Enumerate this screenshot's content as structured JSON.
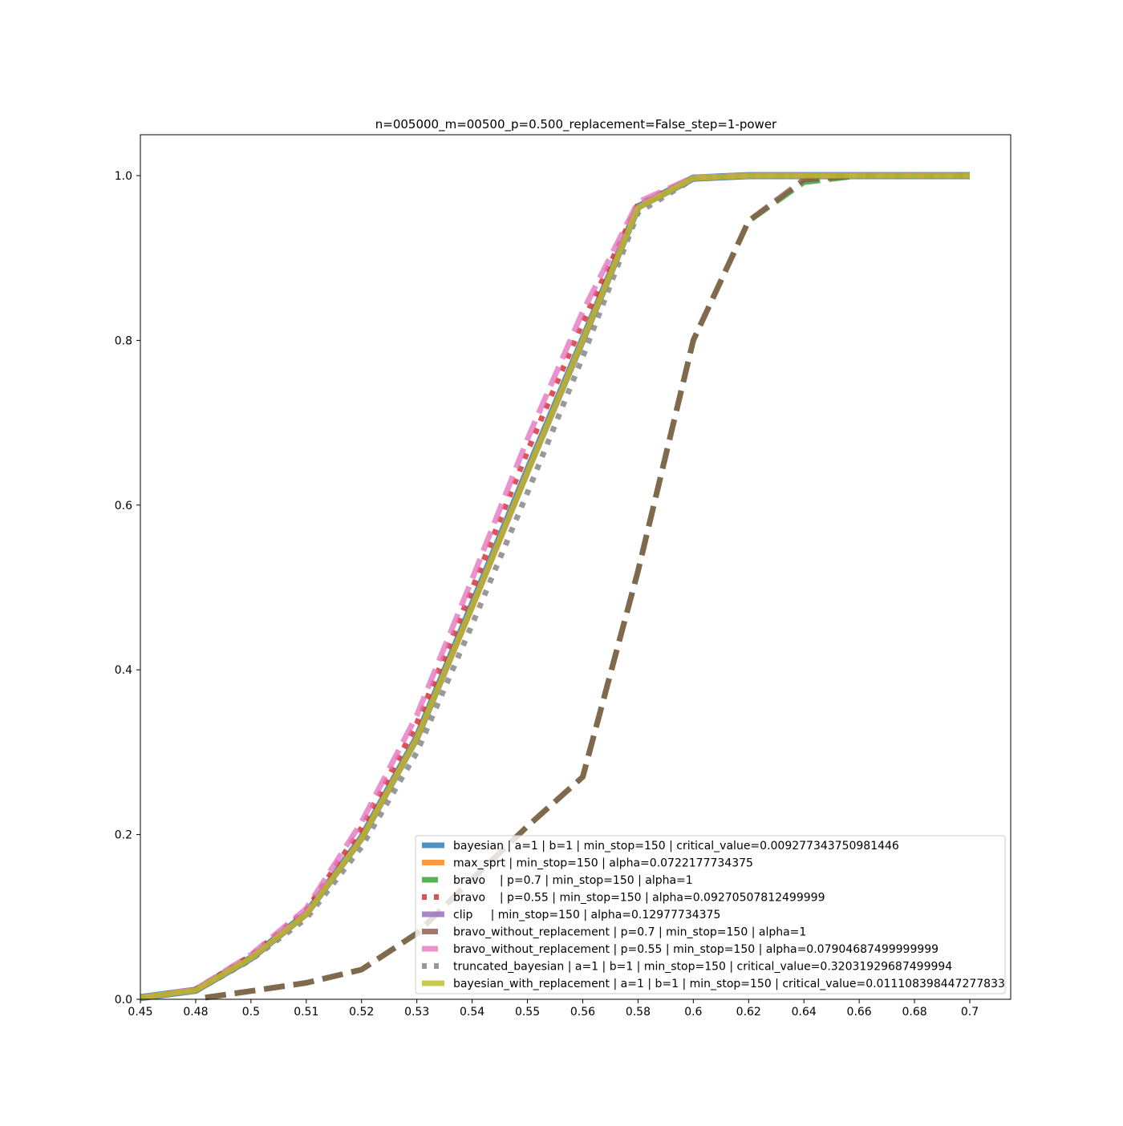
{
  "chart_data": {
    "type": "line",
    "title": "n=005000_m=00500_p=0.500_replacement=False_step=1-power",
    "xlabel": "",
    "ylabel": "",
    "x_tick_labels": [
      "0.45",
      "0.48",
      "0.5",
      "0.51",
      "0.52",
      "0.53",
      "0.54",
      "0.55",
      "0.56",
      "0.58",
      "0.6",
      "0.62",
      "0.64",
      "0.66",
      "0.68",
      "0.7"
    ],
    "y_ticks": [
      "0.0",
      "0.2",
      "0.4",
      "0.6",
      "0.8",
      "1.0"
    ],
    "ylim": [
      0,
      1.05
    ],
    "grid": false,
    "legend_position": "lower-right",
    "series": [
      {
        "name": "bayesian | a=1 | b=1 | min_stop=150 | critical_value=0.009277343750981446",
        "color": "#1f77b4",
        "dash": "solid",
        "values": [
          0.002,
          0.011,
          0.05,
          0.104,
          0.196,
          0.318,
          0.479,
          0.642,
          0.801,
          0.962,
          0.997,
          1.0,
          1.0,
          1.0,
          1.0,
          1.0
        ]
      },
      {
        "name": "max_sprt | min_stop=150 | alpha=0.0722177734375",
        "color": "#ff7f0e",
        "dash": "solid",
        "values": [
          0.002,
          0.011,
          0.05,
          0.103,
          0.195,
          0.317,
          0.476,
          0.64,
          0.8,
          0.962,
          0.997,
          1.0,
          1.0,
          1.0,
          1.0,
          1.0
        ]
      },
      {
        "name": "bravo    | p=0.7 | min_stop=150 | alpha=1",
        "color": "#2ca02c",
        "dash": "dashed",
        "values": [
          null,
          0.002,
          0.01,
          0.02,
          0.036,
          0.08,
          0.146,
          0.21,
          0.27,
          0.52,
          0.8,
          0.945,
          0.992,
          1.0,
          1.0,
          1.0
        ]
      },
      {
        "name": "bravo    | p=0.55 | min_stop=150 | alpha=0.09270507812499999",
        "color": "#d62728",
        "dash": "dotted",
        "values": [
          0.002,
          0.012,
          0.053,
          0.108,
          0.208,
          0.335,
          0.498,
          0.665,
          0.822,
          0.965,
          0.997,
          1.0,
          1.0,
          1.0,
          1.0,
          1.0
        ]
      },
      {
        "name": "clip     | min_stop=150 | alpha=0.12977734375",
        "color": "#9467bd",
        "dash": "solid",
        "values": [
          0.002,
          0.011,
          0.05,
          0.103,
          0.196,
          0.318,
          0.477,
          0.641,
          0.8,
          0.962,
          0.997,
          1.0,
          1.0,
          1.0,
          1.0,
          1.0
        ]
      },
      {
        "name": "bravo_without_replacement | p=0.7 | min_stop=150 | alpha=1",
        "color": "#8c564b",
        "dash": "dashed",
        "values": [
          null,
          0.002,
          0.01,
          0.02,
          0.036,
          0.08,
          0.146,
          0.21,
          0.27,
          0.52,
          0.8,
          0.945,
          0.995,
          1.0,
          1.0,
          1.0
        ]
      },
      {
        "name": "bravo_without_replacement | p=0.55 | min_stop=150 | alpha=0.07904687499999999",
        "color": "#e377c2",
        "dash": "dashed",
        "values": [
          0.002,
          0.012,
          0.054,
          0.11,
          0.215,
          0.345,
          0.51,
          0.68,
          0.835,
          0.968,
          0.998,
          1.0,
          1.0,
          1.0,
          1.0,
          1.0
        ]
      },
      {
        "name": "truncated_bayesian | a=1 | b=1 | min_stop=150 | critical_value=0.32031929687499994",
        "color": "#7f7f7f",
        "dash": "dotted",
        "values": [
          0.002,
          0.01,
          0.048,
          0.098,
          0.185,
          0.3,
          0.455,
          0.615,
          0.78,
          0.955,
          0.996,
          1.0,
          1.0,
          1.0,
          1.0,
          1.0
        ]
      },
      {
        "name": "bayesian_with_replacement | a=1 | b=1 | min_stop=150 | critical_value=0.011108398447277833",
        "color": "#bcbd22",
        "dash": "solid",
        "values": [
          0.002,
          0.011,
          0.05,
          0.103,
          0.195,
          0.317,
          0.477,
          0.64,
          0.8,
          0.961,
          0.997,
          1.0,
          1.0,
          1.0,
          1.0,
          1.0
        ]
      }
    ]
  }
}
